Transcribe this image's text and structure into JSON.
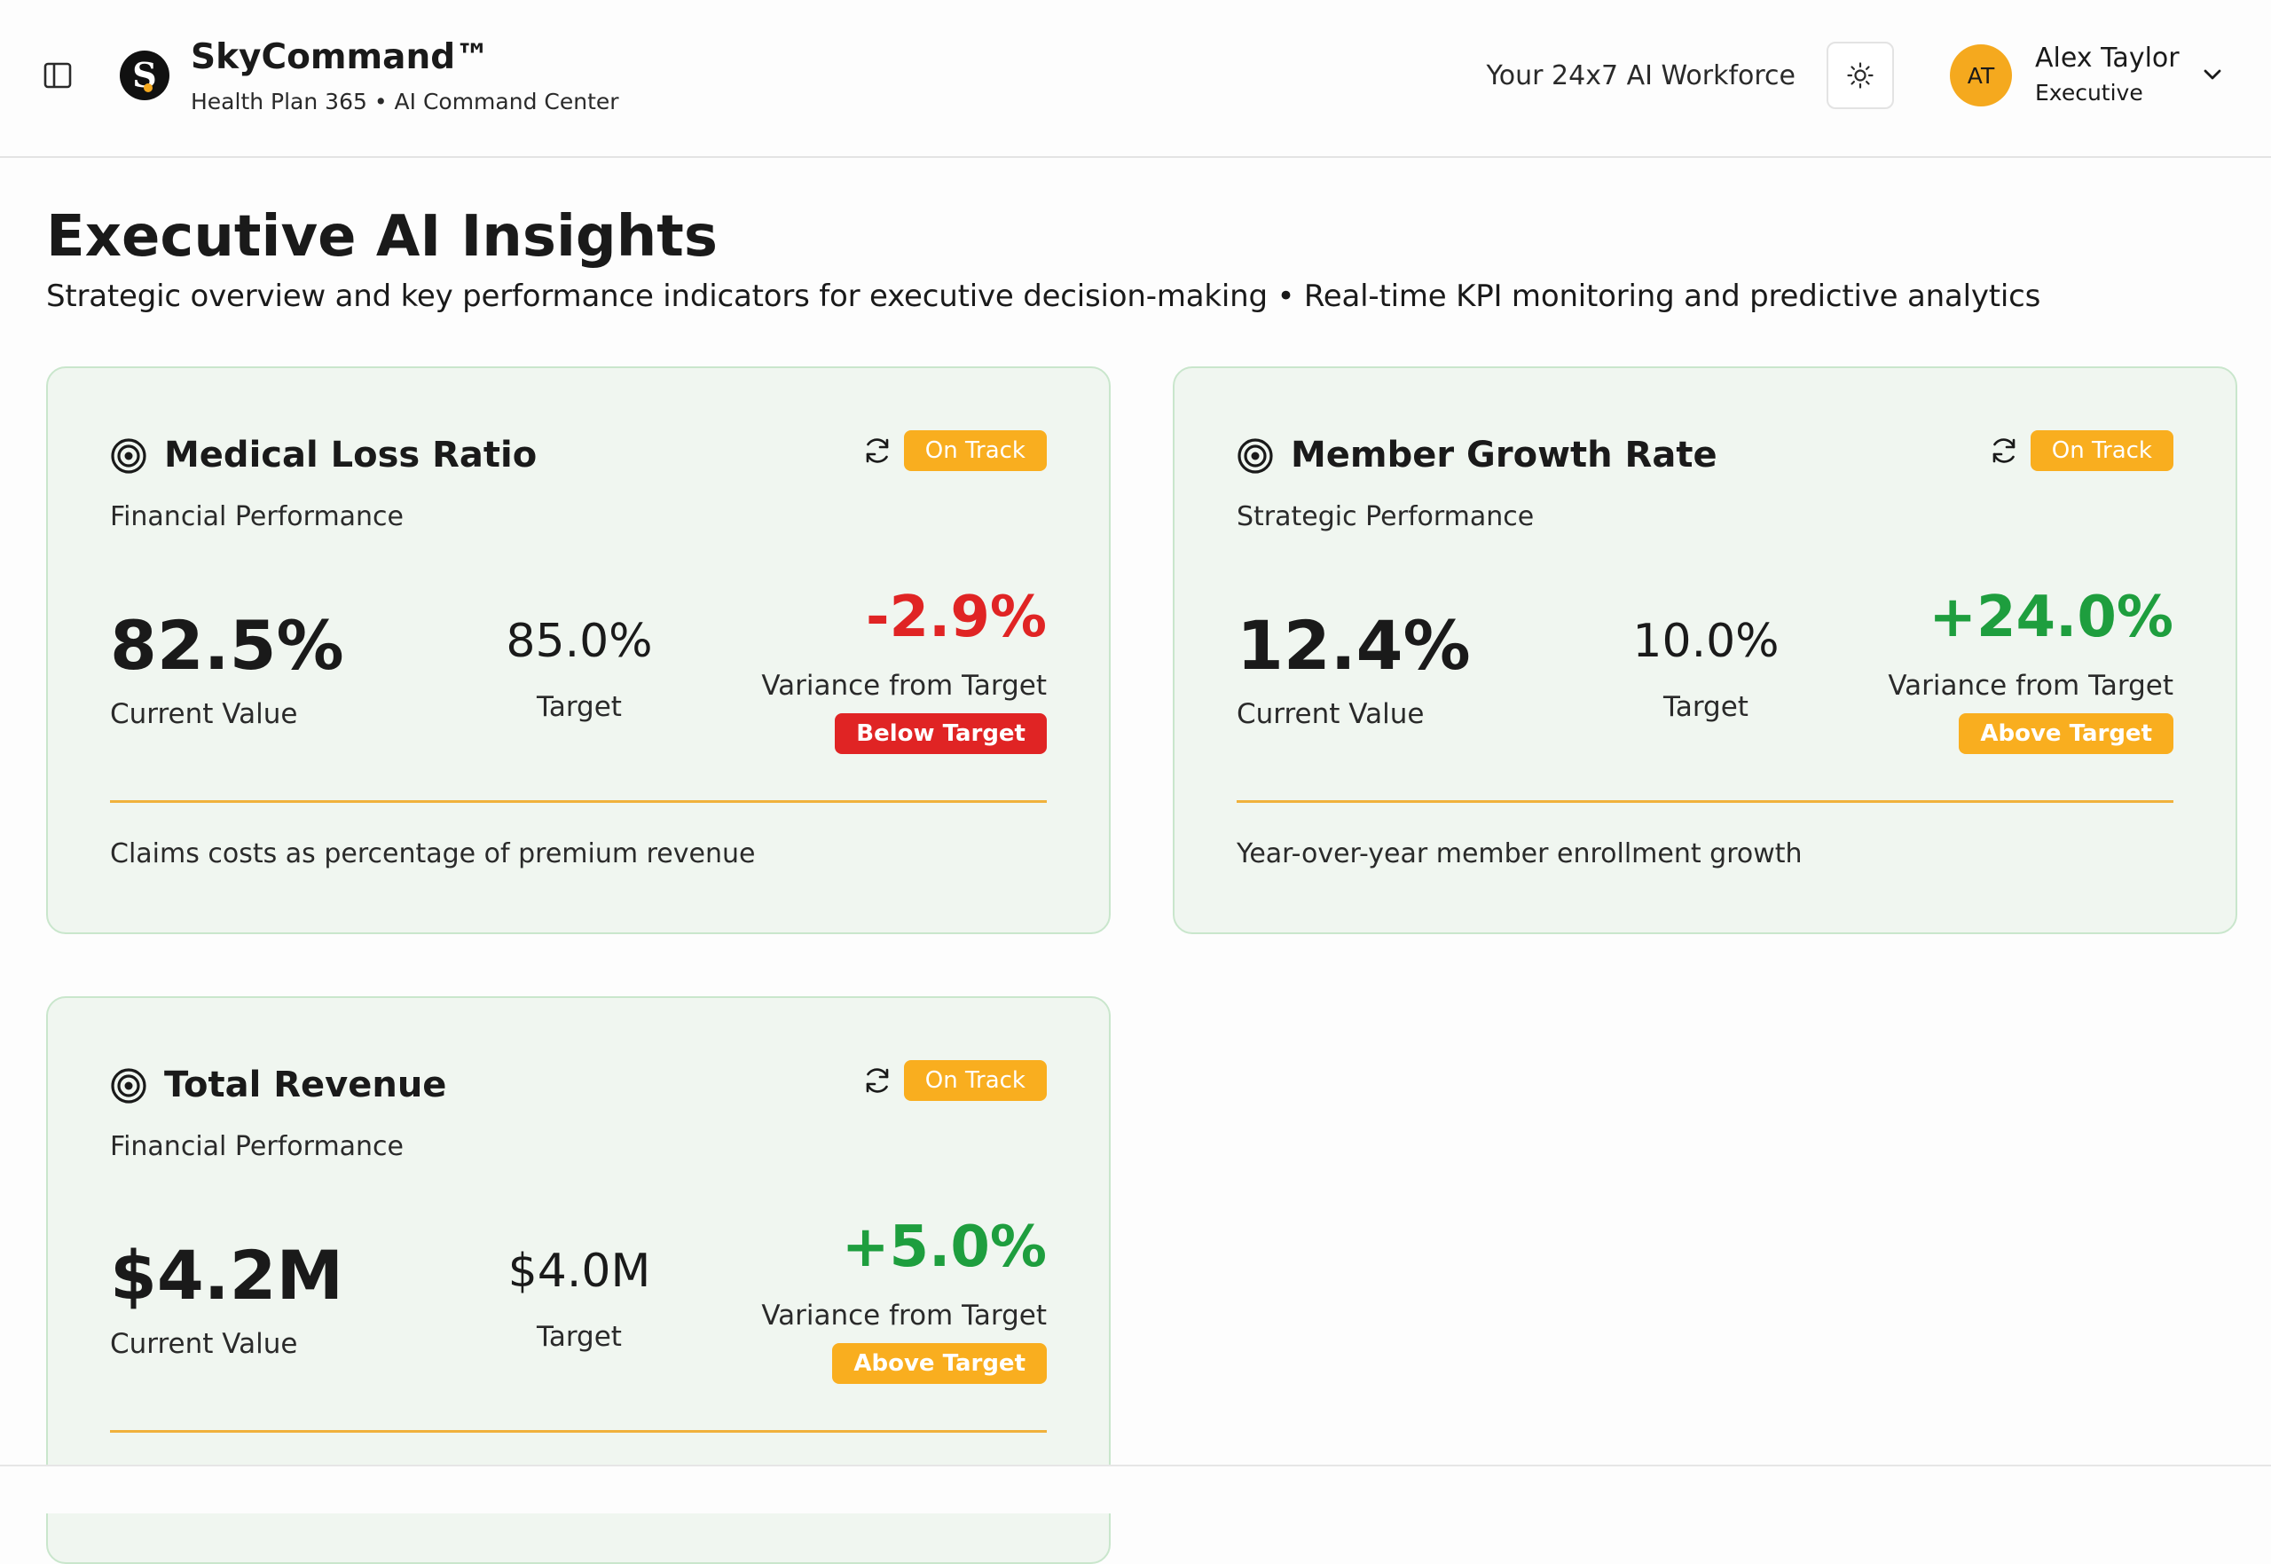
{
  "header": {
    "brand_name": "SkyCommand™",
    "brand_subtitle": "Health Plan 365 • AI Command Center",
    "tagline": "Your 24x7 AI Workforce",
    "user": {
      "initials": "AT",
      "name": "Alex Taylor",
      "role": "Executive"
    },
    "icons": {
      "sidebar_toggle": "sidebar-toggle-icon",
      "logo": "skycommand-logo",
      "theme": "sun-icon",
      "user_menu": "chevron-down-icon"
    }
  },
  "page": {
    "title": "Executive AI Insights",
    "subtitle": "Strategic overview and key performance indicators for executive decision-making • Real-time KPI monitoring and predictive analytics"
  },
  "colors": {
    "accent": "#f9ae1f",
    "negative": "#e02424",
    "positive": "#1e9e3e",
    "card_bg": "#f0f6f0",
    "card_border": "#c9e6cc"
  },
  "kpis": [
    {
      "title": "Medical Loss Ratio",
      "category": "Financial Performance",
      "status": "On Track",
      "current_value": "82.5%",
      "current_label": "Current Value",
      "target_value": "85.0%",
      "target_label": "Target",
      "variance": "-2.9%",
      "variance_direction": "negative",
      "variance_label": "Variance from Target",
      "variance_badge": "Below Target",
      "description": "Claims costs as percentage of premium revenue"
    },
    {
      "title": "Member Growth Rate",
      "category": "Strategic Performance",
      "status": "On Track",
      "current_value": "12.4%",
      "current_label": "Current Value",
      "target_value": "10.0%",
      "target_label": "Target",
      "variance": "+24.0%",
      "variance_direction": "positive",
      "variance_label": "Variance from Target",
      "variance_badge": "Above Target",
      "description": "Year-over-year member enrollment growth"
    },
    {
      "title": "Total Revenue",
      "category": "Financial Performance",
      "status": "On Track",
      "current_value": "$4.2M",
      "current_label": "Current Value",
      "target_value": "$4.0M",
      "target_label": "Target",
      "variance": "+5.0%",
      "variance_direction": "positive",
      "variance_label": "Variance from Target",
      "variance_badge": "Above Target",
      "description": ""
    }
  ]
}
